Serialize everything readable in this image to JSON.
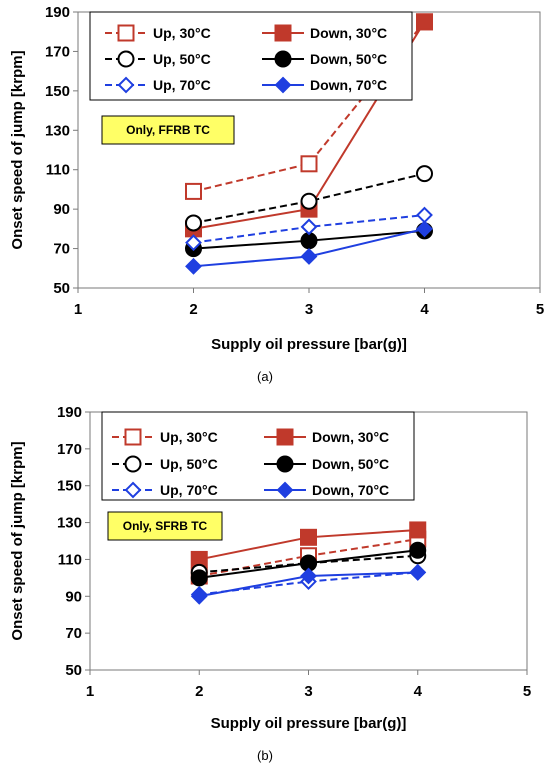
{
  "chart_data": [
    {
      "type": "line",
      "caption": "(a)",
      "note": "Only, FFRB TC",
      "xlabel": "Supply oil pressure [bar(g)]",
      "ylabel": "Onset speed of jump  [krpm]",
      "xlim": [
        1,
        5
      ],
      "ylim": [
        50,
        190
      ],
      "xticks": [
        1,
        2,
        3,
        4,
        5
      ],
      "yticks": [
        50,
        70,
        90,
        110,
        130,
        150,
        170,
        190
      ],
      "grid": false,
      "legend_position": "top",
      "series": [
        {
          "name": "Up, 30°C",
          "x": [
            2,
            3,
            4
          ],
          "y": [
            99,
            113,
            185
          ],
          "color": "#c0392b",
          "dash": "dash",
          "marker": "square-open"
        },
        {
          "name": "Down, 30°C",
          "x": [
            2,
            3,
            4
          ],
          "y": [
            80,
            90,
            185
          ],
          "color": "#c0392b",
          "dash": "solid",
          "marker": "square-filled"
        },
        {
          "name": "Up, 50°C",
          "x": [
            2,
            3,
            4
          ],
          "y": [
            83,
            94,
            108
          ],
          "color": "#000000",
          "dash": "dash",
          "marker": "circle-open"
        },
        {
          "name": "Down, 50°C",
          "x": [
            2,
            3,
            4
          ],
          "y": [
            70,
            74,
            79
          ],
          "color": "#000000",
          "dash": "solid",
          "marker": "circle-filled"
        },
        {
          "name": "Up, 70°C",
          "x": [
            2,
            3,
            4
          ],
          "y": [
            73,
            81,
            87
          ],
          "color": "#1f3fe0",
          "dash": "dash",
          "marker": "diamond-open"
        },
        {
          "name": "Down, 70°C",
          "x": [
            2,
            3,
            4
          ],
          "y": [
            61,
            66,
            80
          ],
          "color": "#1f3fe0",
          "dash": "solid",
          "marker": "diamond-filled"
        }
      ]
    },
    {
      "type": "line",
      "caption": "(b)",
      "note": "Only, SFRB TC",
      "xlabel": "Supply oil pressure [bar(g)]",
      "ylabel": "Onset speed of jump  [krpm]",
      "xlim": [
        1,
        5
      ],
      "ylim": [
        50,
        190
      ],
      "xticks": [
        1,
        2,
        3,
        4,
        5
      ],
      "yticks": [
        50,
        70,
        90,
        110,
        130,
        150,
        170,
        190
      ],
      "grid": false,
      "legend_position": "top",
      "series": [
        {
          "name": "Up, 30°C",
          "x": [
            2,
            3,
            4
          ],
          "y": [
            101,
            112,
            121
          ],
          "color": "#c0392b",
          "dash": "dash",
          "marker": "square-open"
        },
        {
          "name": "Down, 30°C",
          "x": [
            2,
            3,
            4
          ],
          "y": [
            110,
            122,
            126
          ],
          "color": "#c0392b",
          "dash": "solid",
          "marker": "square-filled"
        },
        {
          "name": "Up, 50°C",
          "x": [
            2,
            3,
            4
          ],
          "y": [
            103,
            108,
            112
          ],
          "color": "#000000",
          "dash": "dash",
          "marker": "circle-open"
        },
        {
          "name": "Down, 50°C",
          "x": [
            2,
            3,
            4
          ],
          "y": [
            100,
            108,
            115
          ],
          "color": "#000000",
          "dash": "solid",
          "marker": "circle-filled"
        },
        {
          "name": "Up, 70°C",
          "x": [
            2,
            3,
            4
          ],
          "y": [
            91,
            98,
            103
          ],
          "color": "#1f3fe0",
          "dash": "dash",
          "marker": "diamond-open"
        },
        {
          "name": "Down, 70°C",
          "x": [
            2,
            3,
            4
          ],
          "y": [
            90,
            101,
            103
          ],
          "color": "#1f3fe0",
          "dash": "solid",
          "marker": "diamond-filled"
        }
      ]
    }
  ]
}
